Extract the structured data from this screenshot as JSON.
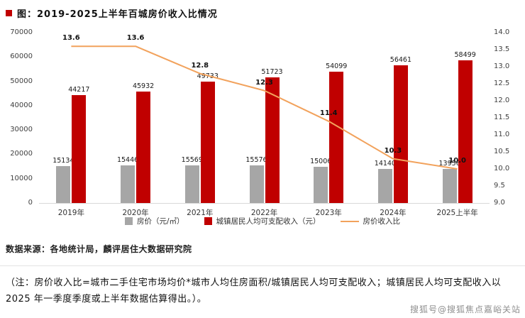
{
  "title": "图：2019-2025上半年百城房价收入比情况",
  "source": "数据来源：各地统计局，麟评居住大数据研究院",
  "note": "（注：房价收入比=城市二手住宅市场均价*城市人均住房面积/城镇居民人均可支配收入；城镇居民人均可支配收入以 2025 年一季度季度或上半年数据估算得出。）。",
  "watermark": "搜狐号@搜狐焦点嘉峪关站",
  "colors": {
    "price_bar": "#a6a6a6",
    "income_bar": "#c00000",
    "ratio_line": "#f2a25c",
    "bullet": "#c00000"
  },
  "chart_data": {
    "type": "bar",
    "subtype": "grouped-bars-with-line",
    "categories": [
      "2019年",
      "2020年",
      "2021年",
      "2022年",
      "2023年",
      "2024年",
      "2025上半年"
    ],
    "series": [
      {
        "name": "房价（元/㎡）",
        "type": "bar",
        "axis": "left",
        "color": "#a6a6a6",
        "values": [
          15134,
          15446,
          15569,
          15576,
          15006,
          14140,
          13956
        ]
      },
      {
        "name": "城镇居民人均可支配收入（元）",
        "type": "bar",
        "axis": "left",
        "color": "#c00000",
        "values": [
          44217,
          45932,
          49733,
          51723,
          54099,
          56461,
          58499
        ]
      },
      {
        "name": "房价收入比",
        "type": "line",
        "axis": "right",
        "color": "#f2a25c",
        "values": [
          13.6,
          13.6,
          12.8,
          12.3,
          11.4,
          10.3,
          10.0
        ]
      }
    ],
    "left_axis": {
      "min": 0,
      "max": 70000,
      "step": 10000
    },
    "right_axis": {
      "min": 9.0,
      "max": 14.0,
      "step": 0.5
    },
    "grid": false,
    "legend_position": "bottom"
  }
}
